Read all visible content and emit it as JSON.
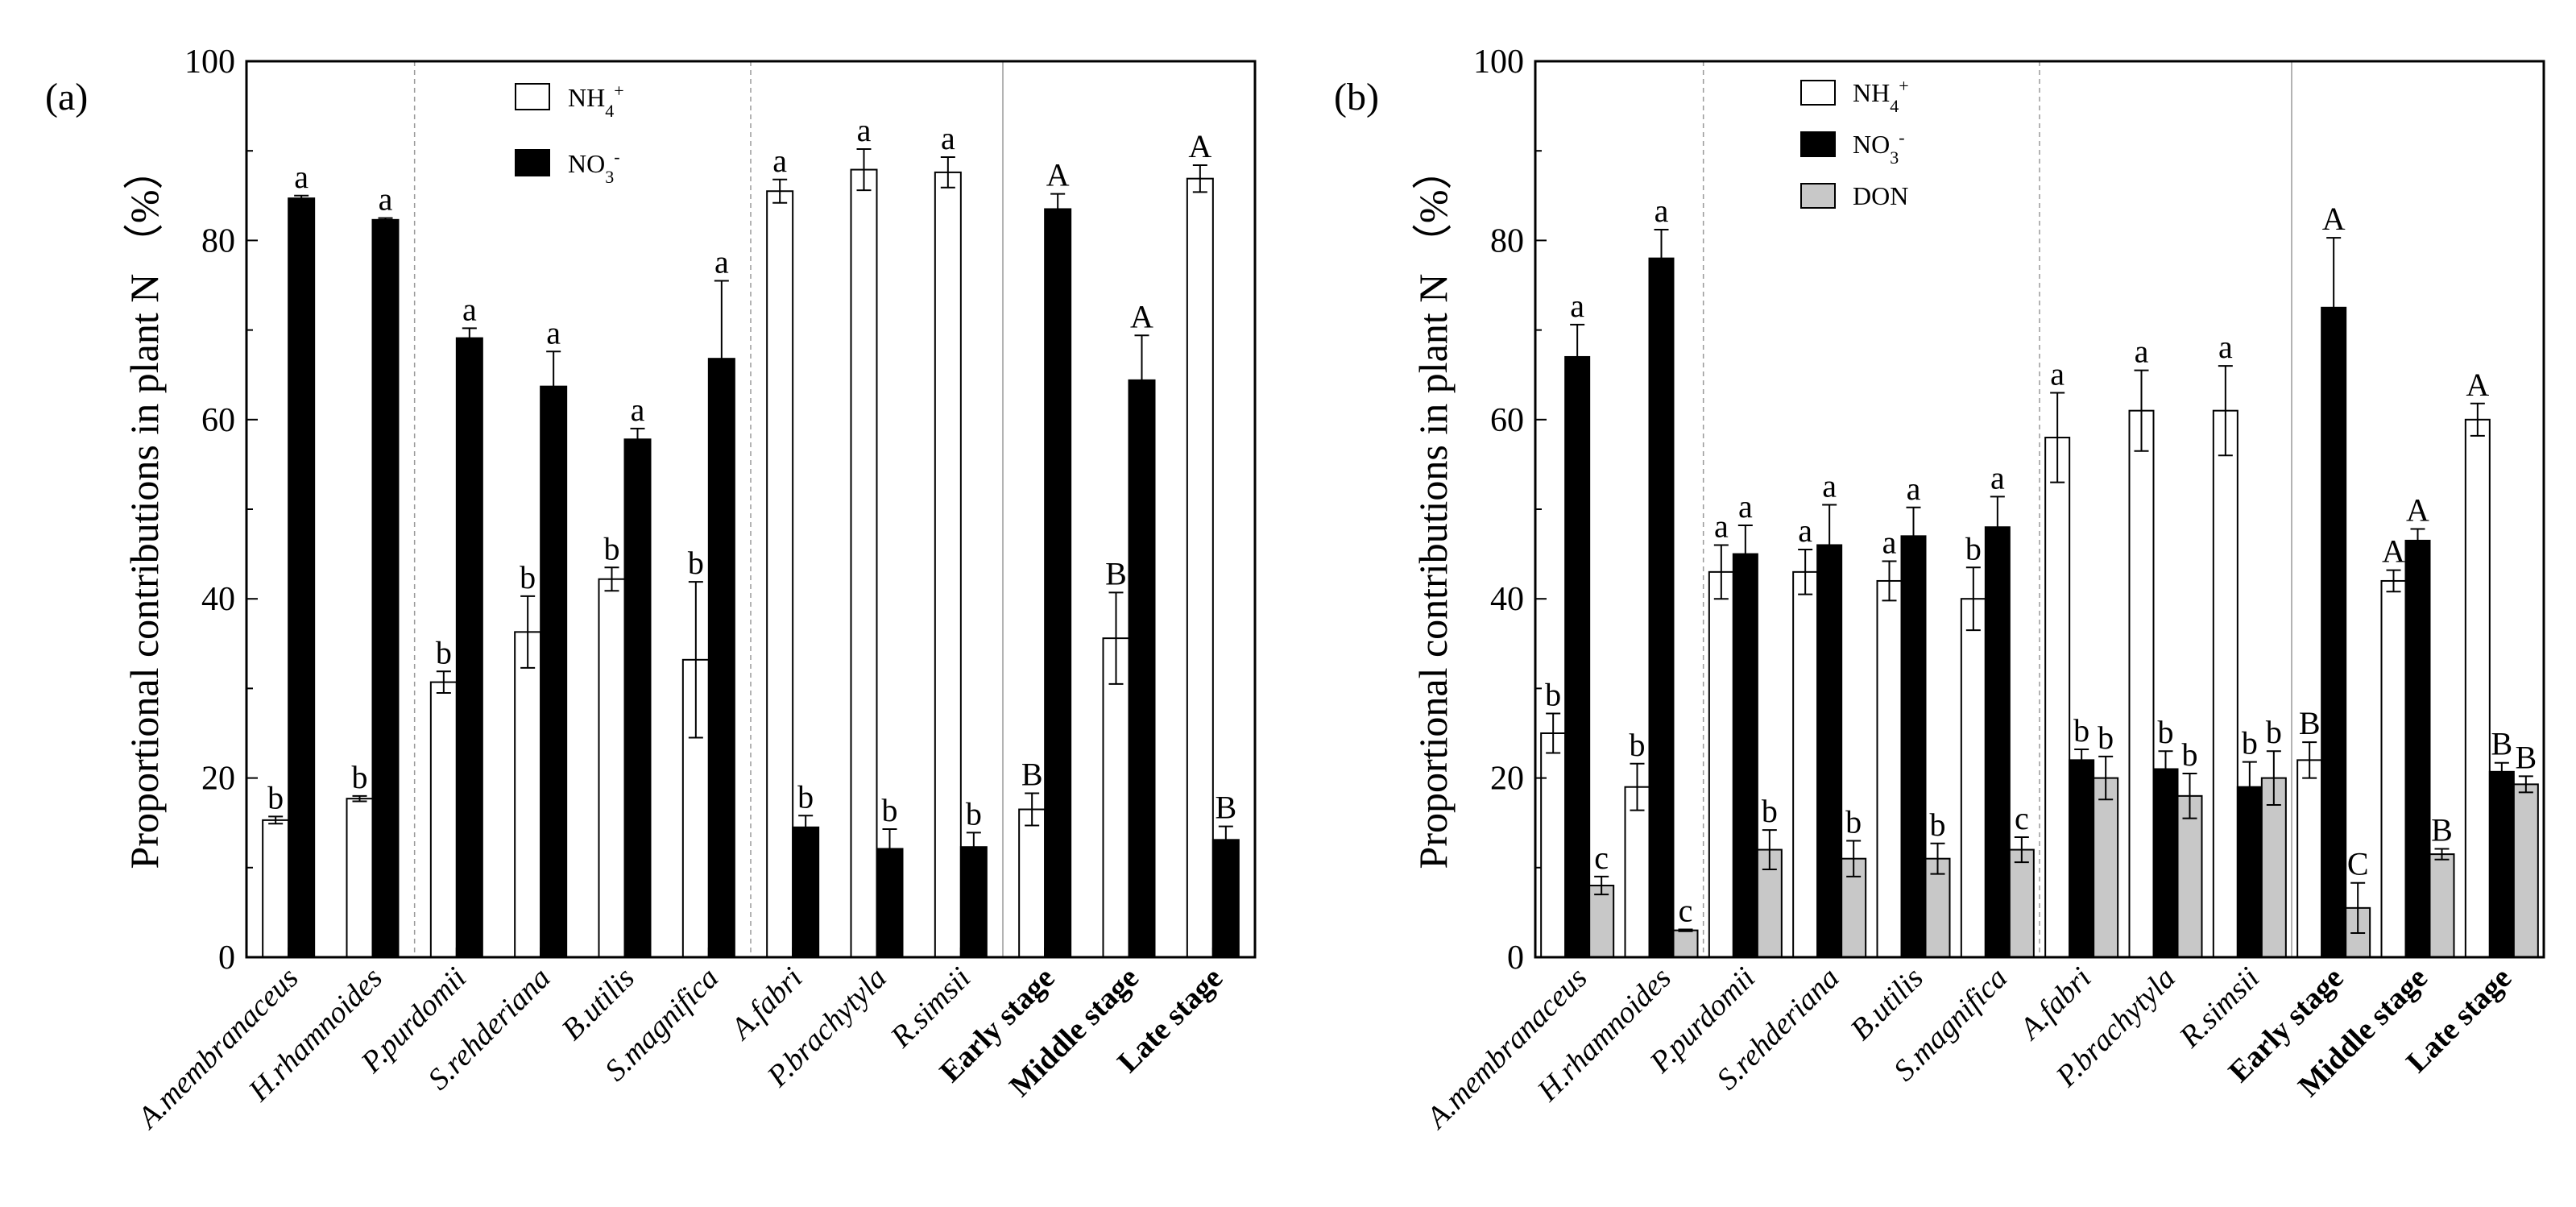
{
  "colors": {
    "nh4": "#ffffff",
    "no3": "#000000",
    "don": "#c8c8c8",
    "axis": "#000000",
    "divider": "#9a9a9a"
  },
  "chart_data": [
    {
      "panel_label": "(a)",
      "type": "bar",
      "ylabel": "Proportional contributions in plant N （%）",
      "ylim": [
        0,
        100
      ],
      "yticks": [
        "0",
        "20",
        "40",
        "60",
        "80",
        "100"
      ],
      "categories": [
        "A.membranaceus",
        "H.rhamnoides",
        "P.purdomii",
        "S.rehderiana",
        "B.utilis",
        "S.magnifica",
        "A.fabri",
        "P.brachytyla",
        "R.simsii",
        "Early stage",
        "Middle stage",
        "Late stage"
      ],
      "bold_categories": [
        "Early stage",
        "Middle stage",
        "Late stage"
      ],
      "group_dividers": [
        2,
        6,
        9
      ],
      "legend": {
        "position": "top-center",
        "entries": [
          "NH4+",
          "NO3-"
        ]
      },
      "series": [
        {
          "name": "NH4+",
          "key": "nh4",
          "values": [
            15.3,
            17.7,
            30.7,
            36.3,
            42.2,
            33.2,
            85.5,
            87.9,
            87.6,
            16.5,
            35.6,
            86.9
          ],
          "errors": [
            0.4,
            0.3,
            1.2,
            4.0,
            1.3,
            8.7,
            1.3,
            2.3,
            1.7,
            1.8,
            5.1,
            1.5
          ],
          "labels": [
            "b",
            "b",
            "b",
            "b",
            "b",
            "b",
            "a",
            "a",
            "a",
            "B",
            "B",
            "A"
          ]
        },
        {
          "name": "NO3-",
          "key": "no3",
          "values": [
            84.7,
            82.3,
            69.1,
            63.7,
            57.8,
            66.8,
            14.5,
            12.1,
            12.3,
            83.5,
            64.4,
            13.1
          ],
          "errors": [
            0.3,
            0.2,
            1.1,
            3.9,
            1.2,
            8.7,
            1.3,
            2.2,
            1.6,
            1.7,
            5.0,
            1.5
          ],
          "labels": [
            "a",
            "a",
            "a",
            "a",
            "a",
            "a",
            "b",
            "b",
            "b",
            "A",
            "A",
            "B"
          ]
        }
      ]
    },
    {
      "panel_label": "(b)",
      "type": "bar",
      "ylabel": "Proportional contributions in plant N （%）",
      "ylim": [
        0,
        100
      ],
      "yticks": [
        "0",
        "20",
        "40",
        "60",
        "80",
        "100"
      ],
      "categories": [
        "A.membranaceus",
        "H.rhamnoides",
        "P.purdomii",
        "S.rehderiana",
        "B.utilis",
        "S.magnifica",
        "A.fabri",
        "P.brachytyla",
        "R.simsii",
        "Early stage",
        "Middle stage",
        "Late stage"
      ],
      "bold_categories": [
        "Early stage",
        "Middle stage",
        "Late stage"
      ],
      "group_dividers": [
        2,
        6,
        9
      ],
      "legend": {
        "position": "top-center",
        "entries": [
          "NH4+",
          "NO3-",
          "DON"
        ]
      },
      "series": [
        {
          "name": "NH4+",
          "key": "nh4",
          "values": [
            25,
            19,
            43,
            43,
            42,
            40,
            58,
            61,
            61,
            22,
            42,
            60
          ],
          "errors": [
            2.2,
            2.6,
            3.0,
            2.5,
            2.2,
            3.5,
            5.0,
            4.5,
            5.0,
            2.0,
            1.2,
            1.8
          ],
          "labels": [
            "b",
            "b",
            "a",
            "a",
            "a",
            "b",
            "a",
            "a",
            "a",
            "B",
            "A",
            "A"
          ]
        },
        {
          "name": "NO3-",
          "key": "no3",
          "values": [
            67,
            78,
            45,
            46,
            47,
            48,
            22,
            21,
            19,
            72.5,
            46.5,
            20.7
          ],
          "errors": [
            3.6,
            3.2,
            3.2,
            4.5,
            3.2,
            3.4,
            1.2,
            2.0,
            2.8,
            7.8,
            1.3,
            1.0
          ],
          "labels": [
            "a",
            "a",
            "a",
            "a",
            "a",
            "a",
            "b",
            "b",
            "b",
            "A",
            "A",
            "B"
          ]
        },
        {
          "name": "DON",
          "key": "don",
          "values": [
            8,
            3,
            12,
            11,
            11,
            12,
            20,
            18,
            20,
            5.5,
            11.5,
            19.3
          ],
          "errors": [
            1.0,
            0.1,
            2.2,
            2.0,
            1.7,
            1.4,
            2.4,
            2.5,
            3.0,
            2.8,
            0.6,
            0.9
          ],
          "labels": [
            "c",
            "c",
            "b",
            "b",
            "b",
            "c",
            "b",
            "b",
            "b",
            "C",
            "B",
            "B"
          ]
        }
      ]
    }
  ]
}
